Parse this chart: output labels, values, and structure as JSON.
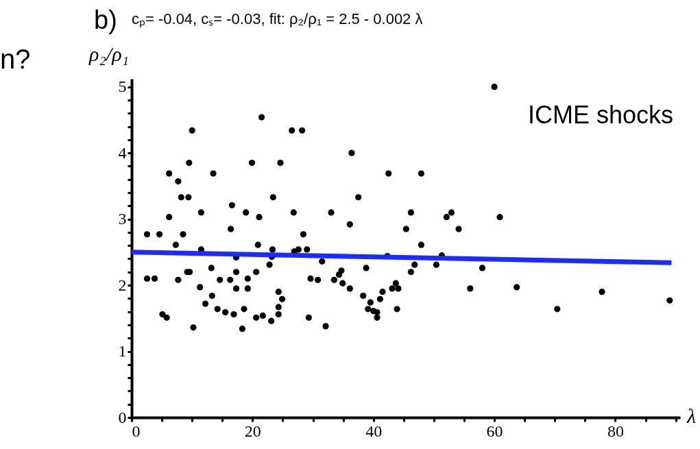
{
  "chart_data": {
    "type": "scatter",
    "title": "b)",
    "subtitle": "cₚ= -0.04,  cₛ= -0.03,   fit: ρ₂/ρ₁ = 2.5 - 0.002 λ",
    "xlabel": "λ",
    "ylabel": "ρ₂/ρ₁",
    "annotations": [
      "ICME shocks",
      "n?"
    ],
    "xlim": [
      0,
      90.5
    ],
    "ylim": [
      0,
      5.1
    ],
    "xticks": [
      0,
      {
        "value": 5,
        "label": null
      },
      {
        "value": 10,
        "label": null
      },
      {
        "value": 15,
        "label": null
      },
      20,
      {
        "value": 25,
        "label": null
      },
      {
        "value": 30,
        "label": null
      },
      {
        "value": 35,
        "label": null
      },
      40,
      {
        "value": 45,
        "label": null
      },
      {
        "value": 50,
        "label": null
      },
      {
        "value": 55,
        "label": null
      },
      60,
      {
        "value": 65,
        "label": null
      },
      {
        "value": 70,
        "label": null
      },
      {
        "value": 75,
        "label": null
      },
      80,
      {
        "value": 85,
        "label": null
      },
      {
        "value": 90,
        "label": null
      }
    ],
    "yticks": [
      0,
      {
        "value": 0.2,
        "label": null
      },
      {
        "value": 0.4,
        "label": null
      },
      {
        "value": 0.6,
        "label": null
      },
      {
        "value": 0.8,
        "label": null
      },
      1,
      {
        "value": 1.2,
        "label": null
      },
      {
        "value": 1.4,
        "label": null
      },
      {
        "value": 1.6,
        "label": null
      },
      {
        "value": 1.8,
        "label": null
      },
      2,
      {
        "value": 2.2,
        "label": null
      },
      {
        "value": 2.4,
        "label": null
      },
      {
        "value": 2.6,
        "label": null
      },
      {
        "value": 2.8,
        "label": null
      },
      3,
      {
        "value": 3.2,
        "label": null
      },
      {
        "value": 3.4,
        "label": null
      },
      {
        "value": 3.6,
        "label": null
      },
      {
        "value": 3.8,
        "label": null
      },
      4,
      {
        "value": 4.2,
        "label": null
      },
      {
        "value": 4.4,
        "label": null
      },
      {
        "value": 4.6,
        "label": null
      },
      {
        "value": 4.8,
        "label": null
      },
      5
    ],
    "grid": false,
    "marker": "circle",
    "series": [
      {
        "color": "#000000",
        "x": [
          2.55,
          4.6,
          2.55,
          3.8,
          5.1,
          5.8,
          6.2,
          6.2,
          7.7,
          8.2,
          9.4,
          7.3,
          8.5,
          7.7,
          9.2,
          9.6,
          9.5,
          10.0,
          10.2,
          11.5,
          11.5,
          11.3,
          12.2,
          13.3,
          13.2,
          13.5,
          14.2,
          14.6,
          15.5,
          16.3,
          16.4,
          16.6,
          16.9,
          17.3,
          17.3,
          17.3,
          18.3,
          18.6,
          18.9,
          19.2,
          19.2,
          19.9,
          20.6,
          20.6,
          20.9,
          21.1,
          21.5,
          21.7,
          22.8,
          23.1,
          23.2,
          23.3,
          23.4,
          24.3,
          24.9,
          24.3,
          24.3,
          24.6,
          26.5,
          28.2,
          36.4,
          37.5,
          26.8,
          33.0,
          36.1,
          28.4,
          27.6,
          26.9,
          29.0,
          31.5,
          29.6,
          30.8,
          29.3,
          32.1,
          33.5,
          34.3,
          34.7,
          34.9,
          36.1,
          38.8,
          38.3,
          39.5,
          39.1,
          40.0,
          40.6,
          40.6,
          41.1,
          41.5,
          43.9,
          43.1,
          43.7,
          44.1,
          42.3,
          42.5,
          47.9,
          46.2,
          45.4,
          47.9,
          46.8,
          46.2,
          50.4,
          51.3,
          52.1,
          52.9,
          54.1,
          56.0,
          58.0,
          60.0,
          60.9,
          63.7,
          70.4,
          77.8,
          89.0
        ],
        "values": [
          2.77,
          2.77,
          2.1,
          2.1,
          1.56,
          1.51,
          3.69,
          3.03,
          3.57,
          3.33,
          3.33,
          2.61,
          2.77,
          2.08,
          2.2,
          2.2,
          3.85,
          4.34,
          1.36,
          3.1,
          2.54,
          1.97,
          1.72,
          1.84,
          2.26,
          3.69,
          1.64,
          2.08,
          1.59,
          2.08,
          2.85,
          3.21,
          1.56,
          2.2,
          1.95,
          2.42,
          1.34,
          1.64,
          3.1,
          2.1,
          1.95,
          3.85,
          2.2,
          1.51,
          2.61,
          3.03,
          4.54,
          1.54,
          2.31,
          1.46,
          2.43,
          2.54,
          3.33,
          1.9,
          1.79,
          1.67,
          1.56,
          3.85,
          4.34,
          4.34,
          4.0,
          3.33,
          3.1,
          3.1,
          2.92,
          2.77,
          2.54,
          2.51,
          2.54,
          2.36,
          2.1,
          2.08,
          1.51,
          1.38,
          2.08,
          2.16,
          2.22,
          2.03,
          1.95,
          2.26,
          1.84,
          1.74,
          1.64,
          1.61,
          1.59,
          1.51,
          1.79,
          1.9,
          1.64,
          1.95,
          2.03,
          1.95,
          2.44,
          3.69,
          3.69,
          3.1,
          2.85,
          2.61,
          2.31,
          2.2,
          2.31,
          2.45,
          3.03,
          3.1,
          2.85,
          1.95,
          2.26,
          5.0,
          3.03,
          1.97,
          1.64,
          1.9,
          1.77
        ]
      },
      {
        "type": "line",
        "color": "#1a2cff",
        "line_style": "solid",
        "marker": "none",
        "x": [
          0,
          89.3
        ],
        "values": [
          2.5,
          2.34
        ]
      }
    ]
  }
}
